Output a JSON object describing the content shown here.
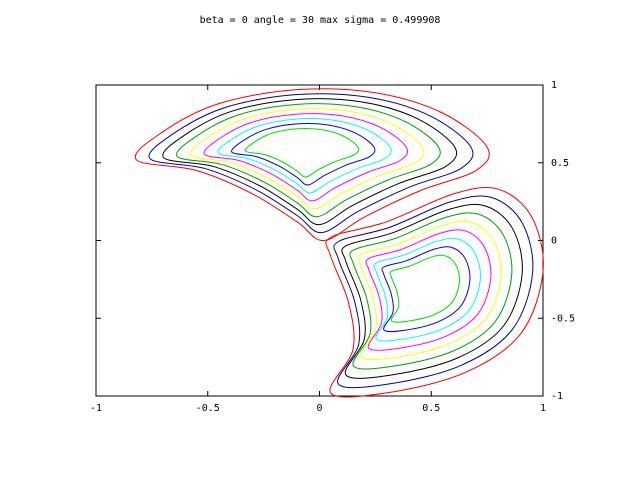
{
  "chart_data": {
    "type": "contour",
    "title": "beta = 0  angle = 30  max sigma = 0.499908",
    "xlim": [
      -1,
      1
    ],
    "ylim": [
      -1,
      1
    ],
    "xticks": [
      -1,
      -0.5,
      0,
      0.5,
      1
    ],
    "yticks": [
      -1,
      -0.5,
      0,
      0.5,
      1
    ],
    "level_colors": [
      "#ff0000",
      "#0000a0",
      "#000000",
      "#00a000",
      "#ffff00",
      "#ff00ff",
      "#00ffff",
      "#0000ff",
      "#00e000"
    ]
  }
}
